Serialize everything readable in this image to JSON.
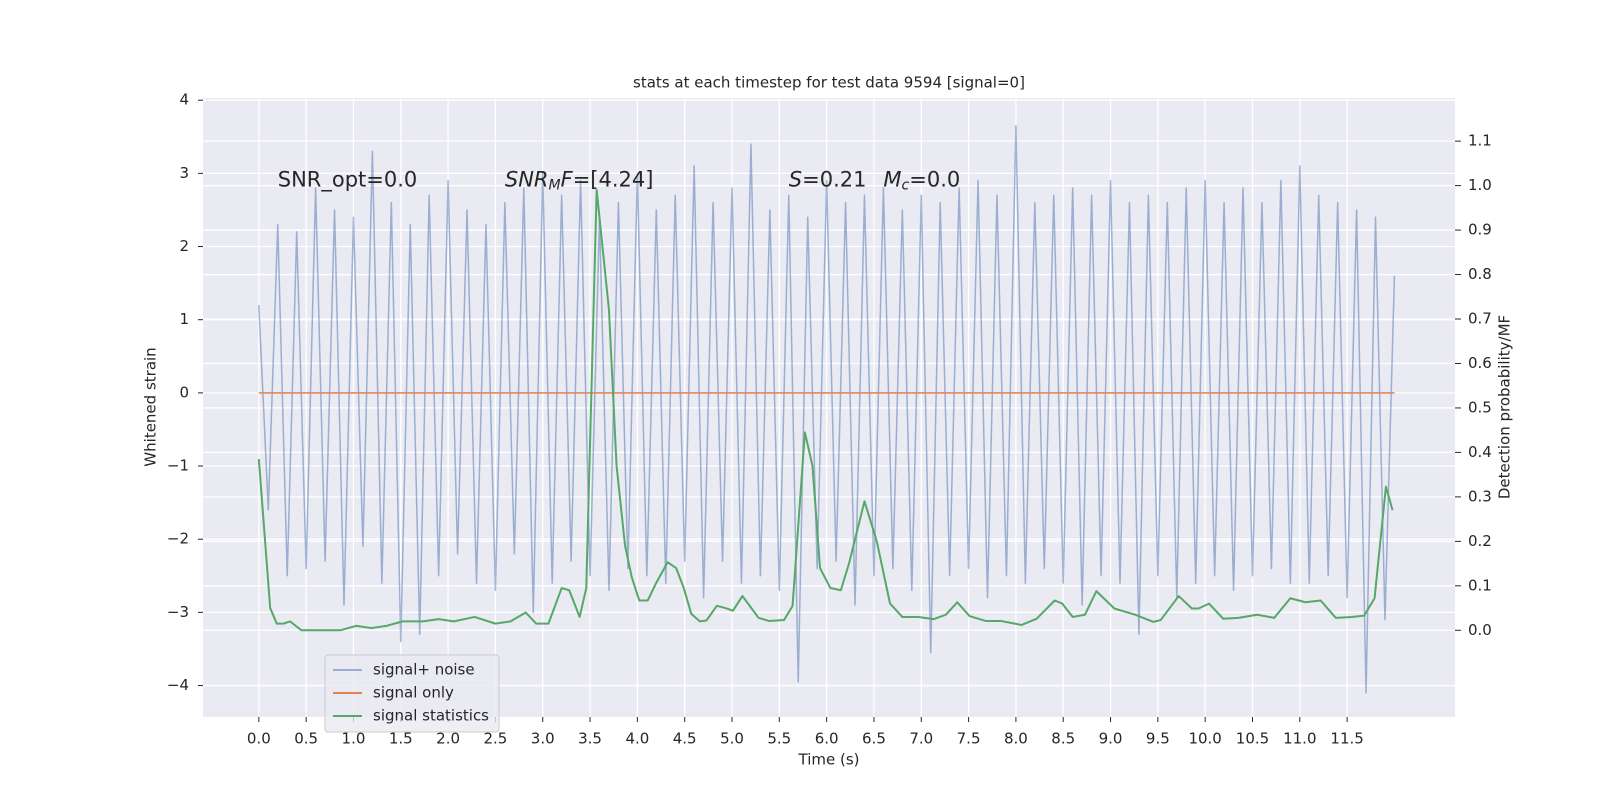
{
  "chart_data": {
    "type": "line",
    "title": "stats at each timestep for test data 9594 [signal=0]",
    "xlabel": "Time (s)",
    "ylabel": "Whitened strain",
    "y2label": "Detection probability/MF",
    "xlim": [
      -0.59,
      12.64
    ],
    "ylim": [
      -4.43,
      4.03
    ],
    "y2lim": [
      -0.195,
      1.197
    ],
    "xticks": [
      {
        "value": 0,
        "label": "0.0"
      },
      0.5,
      {
        "value": 1,
        "label": "1.0"
      },
      1.5,
      {
        "value": 2,
        "label": "2.0"
      },
      2.5,
      {
        "value": 3,
        "label": "3.0"
      },
      3.5,
      {
        "value": 4,
        "label": "4.0"
      },
      4.5,
      {
        "value": 5,
        "label": "5.0"
      },
      5.5,
      {
        "value": 6,
        "label": "6.0"
      },
      6.5,
      {
        "value": 7,
        "label": "7.0"
      },
      7.5,
      {
        "value": 8,
        "label": "8.0"
      },
      8.5,
      {
        "value": 9,
        "label": "9.0"
      },
      9.5,
      {
        "value": 10,
        "label": "10.0"
      },
      10.5,
      {
        "value": 11,
        "label": "11.0"
      },
      11.5
    ],
    "yticks": [
      {
        "value": -4,
        "label": "−4"
      },
      {
        "value": -3,
        "label": "−3"
      },
      {
        "value": -2,
        "label": "−2"
      },
      {
        "value": -1,
        "label": "−1"
      },
      0,
      1,
      2,
      3,
      4
    ],
    "y2ticks": [
      {
        "value": 0,
        "label": "0.0"
      },
      0.1,
      0.2,
      0.3,
      0.4,
      0.5,
      0.6,
      0.7,
      0.8,
      0.9,
      {
        "value": 1,
        "label": "1.0"
      },
      1.1
    ],
    "grid": true,
    "legend": "lower left",
    "annotations": [
      [
        {
          "text": "SNR_opt=0.0"
        }
      ],
      [
        {
          "text": "SNR",
          "italic": true
        },
        {
          "text": "M",
          "italic": true,
          "sub": true
        },
        {
          "text": "F",
          "italic": true
        },
        {
          "text": "=[4.24]"
        }
      ],
      [
        {
          "text": "S",
          "italic": true
        },
        {
          "text": "=0.21"
        }
      ],
      [
        {
          "text": "M",
          "italic": true
        },
        {
          "text": "c",
          "italic": true,
          "sub": true
        },
        {
          "text": "=0.0"
        }
      ]
    ],
    "series": [
      {
        "name": "signal+ noise",
        "color": "#4c72b0",
        "opacity": 0.5,
        "x": [
          0.0,
          0.1,
          0.2,
          0.3,
          0.4,
          0.5,
          0.6,
          0.7,
          0.8,
          0.9,
          1.0,
          1.1,
          1.2,
          1.3,
          1.4,
          1.5,
          1.6,
          1.7,
          1.8,
          1.9,
          2.0,
          2.1,
          2.2,
          2.3,
          2.4,
          2.5,
          2.6,
          2.7,
          2.8,
          2.9,
          3.0,
          3.1,
          3.2,
          3.3,
          3.4,
          3.5,
          3.6,
          3.7,
          3.8,
          3.9,
          4.0,
          4.1,
          4.2,
          4.3,
          4.4,
          4.5,
          4.6,
          4.7,
          4.8,
          4.9,
          5.0,
          5.1,
          5.2,
          5.3,
          5.4,
          5.5,
          5.6,
          5.7,
          5.8,
          5.9,
          6.0,
          6.1,
          6.2,
          6.3,
          6.4,
          6.5,
          6.6,
          6.7,
          6.8,
          6.9,
          7.0,
          7.1,
          7.2,
          7.3,
          7.4,
          7.5,
          7.6,
          7.7,
          7.8,
          7.9,
          8.0,
          8.1,
          8.2,
          8.3,
          8.4,
          8.5,
          8.6,
          8.7,
          8.8,
          8.9,
          9.0,
          9.1,
          9.2,
          9.3,
          9.4,
          9.5,
          9.6,
          9.7,
          9.8,
          9.9,
          10.0,
          10.1,
          10.2,
          10.3,
          10.4,
          10.5,
          10.6,
          10.7,
          10.8,
          10.9,
          11.0,
          11.1,
          11.2,
          11.3,
          11.4,
          11.5,
          11.6,
          11.7,
          11.8,
          11.9,
          12.0
        ],
        "values": [
          1.2,
          -1.6,
          2.3,
          -2.5,
          2.2,
          -2.4,
          2.8,
          -2.3,
          2.5,
          -2.9,
          2.4,
          -2.1,
          3.3,
          -2.6,
          2.6,
          -3.4,
          2.3,
          -3.3,
          2.7,
          -2.5,
          2.9,
          -2.2,
          2.5,
          -2.6,
          2.3,
          -2.7,
          2.6,
          -2.2,
          2.8,
          -3.0,
          3.0,
          -2.6,
          2.7,
          -2.3,
          2.9,
          -2.5,
          2.4,
          -2.7,
          2.6,
          -2.4,
          3.0,
          -2.5,
          2.5,
          -2.6,
          2.7,
          -2.3,
          3.1,
          -2.8,
          2.6,
          -2.3,
          2.8,
          -2.6,
          3.4,
          -2.5,
          2.5,
          -2.7,
          2.7,
          -3.95,
          2.4,
          -2.4,
          2.9,
          -2.3,
          2.6,
          -2.9,
          2.7,
          -2.5,
          2.8,
          -2.4,
          2.5,
          -2.7,
          2.7,
          -3.55,
          2.6,
          -2.5,
          2.8,
          -2.4,
          2.9,
          -2.8,
          2.7,
          -2.5,
          3.65,
          -2.6,
          2.6,
          -2.4,
          2.7,
          -2.6,
          2.8,
          -2.9,
          2.7,
          -2.5,
          2.9,
          -2.6,
          2.6,
          -3.3,
          2.7,
          -2.5,
          2.6,
          -2.8,
          2.8,
          -2.6,
          2.9,
          -2.5,
          2.6,
          -2.7,
          2.8,
          -2.5,
          2.6,
          -2.4,
          2.9,
          -2.6,
          3.1,
          -2.6,
          2.7,
          -2.5,
          2.6,
          -2.8,
          2.5,
          -4.1,
          2.4,
          -3.1,
          1.6
        ]
      },
      {
        "name": "signal only",
        "color": "#dd8452",
        "opacity": 1,
        "x": [
          0.0,
          12.0
        ],
        "values": [
          0,
          0
        ]
      },
      {
        "name": "signal statistics",
        "color": "#55a868",
        "opacity": 1,
        "axis": "y2",
        "x": [
          0,
          0.12,
          0.19,
          0.26,
          0.33,
          0.45,
          0.64,
          0.86,
          1.03,
          1.19,
          1.35,
          1.52,
          1.73,
          1.9,
          2.06,
          2.28,
          2.5,
          2.66,
          2.82,
          2.93,
          3.06,
          3.2,
          3.28,
          3.39,
          3.46,
          3.57,
          3.7,
          3.78,
          3.87,
          3.94,
          4.02,
          4.11,
          4.2,
          4.32,
          4.41,
          4.49,
          4.57,
          4.66,
          4.73,
          4.84,
          4.93,
          5.01,
          5.11,
          5.17,
          5.28,
          5.39,
          5.55,
          5.64,
          5.77,
          5.85,
          5.93,
          6.04,
          6.15,
          6.24,
          6.4,
          6.53,
          6.67,
          6.8,
          6.97,
          7.13,
          7.26,
          7.38,
          7.51,
          7.68,
          7.84,
          8.06,
          8.22,
          8.41,
          8.49,
          8.6,
          8.73,
          8.85,
          9.04,
          9.26,
          9.45,
          9.53,
          9.72,
          9.86,
          9.93,
          10.04,
          10.19,
          10.35,
          10.55,
          10.73,
          10.9,
          11.06,
          11.22,
          11.38,
          11.55,
          11.68,
          11.79,
          11.91,
          11.98
        ],
        "values": [
          0.385,
          0.05,
          0.015,
          0.015,
          0.02,
          0.0,
          0.0,
          0.0,
          0.01,
          0.005,
          0.01,
          0.02,
          0.02,
          0.025,
          0.02,
          0.03,
          0.015,
          0.02,
          0.04,
          0.015,
          0.015,
          0.095,
          0.09,
          0.03,
          0.095,
          0.99,
          0.72,
          0.37,
          0.19,
          0.12,
          0.067,
          0.067,
          0.107,
          0.153,
          0.14,
          0.095,
          0.037,
          0.02,
          0.022,
          0.055,
          0.05,
          0.044,
          0.077,
          0.06,
          0.028,
          0.021,
          0.023,
          0.055,
          0.445,
          0.37,
          0.14,
          0.095,
          0.09,
          0.153,
          0.29,
          0.2,
          0.06,
          0.03,
          0.03,
          0.025,
          0.035,
          0.063,
          0.032,
          0.021,
          0.021,
          0.012,
          0.026,
          0.067,
          0.06,
          0.03,
          0.035,
          0.088,
          0.049,
          0.035,
          0.019,
          0.023,
          0.077,
          0.049,
          0.049,
          0.06,
          0.026,
          0.028,
          0.035,
          0.028,
          0.072,
          0.063,
          0.067,
          0.028,
          0.03,
          0.033,
          0.072,
          0.323,
          0.27
        ]
      }
    ]
  }
}
